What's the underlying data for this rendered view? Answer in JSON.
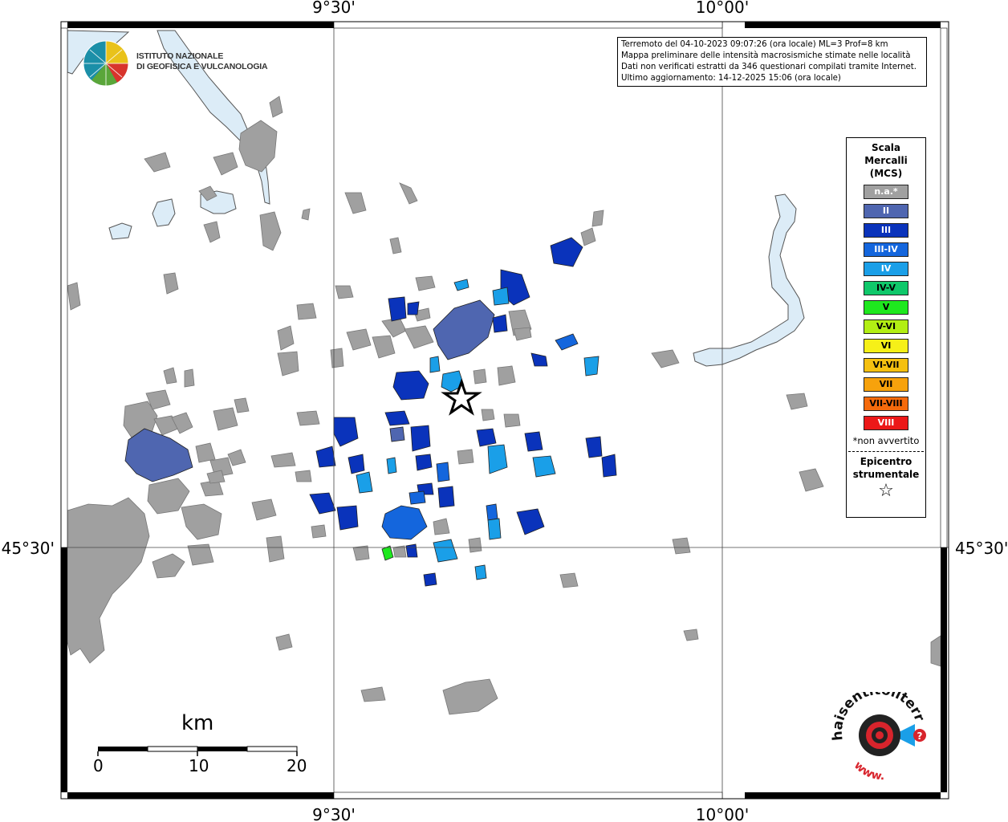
{
  "coords": {
    "top_left": "9°30'",
    "top_right": "10°00'",
    "bottom_left": "9°30'",
    "bottom_right": "10°00'",
    "left_lat": "45°30'",
    "right_lat": "45°30'"
  },
  "info": {
    "line1": "Terremoto del 04-10-2023 09:07:26 (ora locale) ML=3 Prof=8 km",
    "line2": "Mappa preliminare delle intensità macrosismiche stimate nelle località",
    "line3": "Dati non verificati estratti da 346 questionari compilati tramite Internet.",
    "line4": "Ultimo aggiornamento: 14-12-2025 15:06 (ora locale)"
  },
  "logo": {
    "line1": "ISTITUTO NAZIONALE",
    "line2": "DI GEOFISICA E VULCANOLOGIA"
  },
  "legend": {
    "title1": "Scala",
    "title2": "Mercalli",
    "title3": "(MCS)",
    "items": [
      {
        "label": "n.a.*",
        "color": "#a0a0a0",
        "text": "#ffffff"
      },
      {
        "label": "II",
        "color": "#4f66b0",
        "text": "#ffffff"
      },
      {
        "label": "III",
        "color": "#0a33bb",
        "text": "#ffffff"
      },
      {
        "label": "III-IV",
        "color": "#1466dd",
        "text": "#ffffff"
      },
      {
        "label": "IV",
        "color": "#1a9fe8",
        "text": "#ffffff"
      },
      {
        "label": "IV-V",
        "color": "#0fc86a",
        "text": "#000000"
      },
      {
        "label": "V",
        "color": "#1ee81e",
        "text": "#000000"
      },
      {
        "label": "V-VI",
        "color": "#b2ee14",
        "text": "#000000"
      },
      {
        "label": "VI",
        "color": "#f6f018",
        "text": "#000000"
      },
      {
        "label": "VI-VII",
        "color": "#f5c010",
        "text": "#000000"
      },
      {
        "label": "VII",
        "color": "#f7a20c",
        "text": "#000000"
      },
      {
        "label": "VII-VIII",
        "color": "#f56a0c",
        "text": "#000000"
      },
      {
        "label": "VIII",
        "color": "#ec1818",
        "text": "#ffffff"
      }
    ],
    "na_note": "*non avvertito",
    "epi1": "Epicentro",
    "epi2": "strumentale",
    "epi_symbol": "☆"
  },
  "scalebar": {
    "unit": "km",
    "ticks": [
      "0",
      "10",
      "20"
    ]
  },
  "badge": {
    "text": "haisentitoilterremoto.it",
    "www": "www."
  },
  "colors": {
    "water": "#dcecf7",
    "unfelt": "#a0a0a0",
    "ii": "#4f66b0",
    "iii": "#0a33bb",
    "iii_iv": "#1466dd",
    "iv": "#1a9fe8",
    "v": "#1ee81e"
  }
}
